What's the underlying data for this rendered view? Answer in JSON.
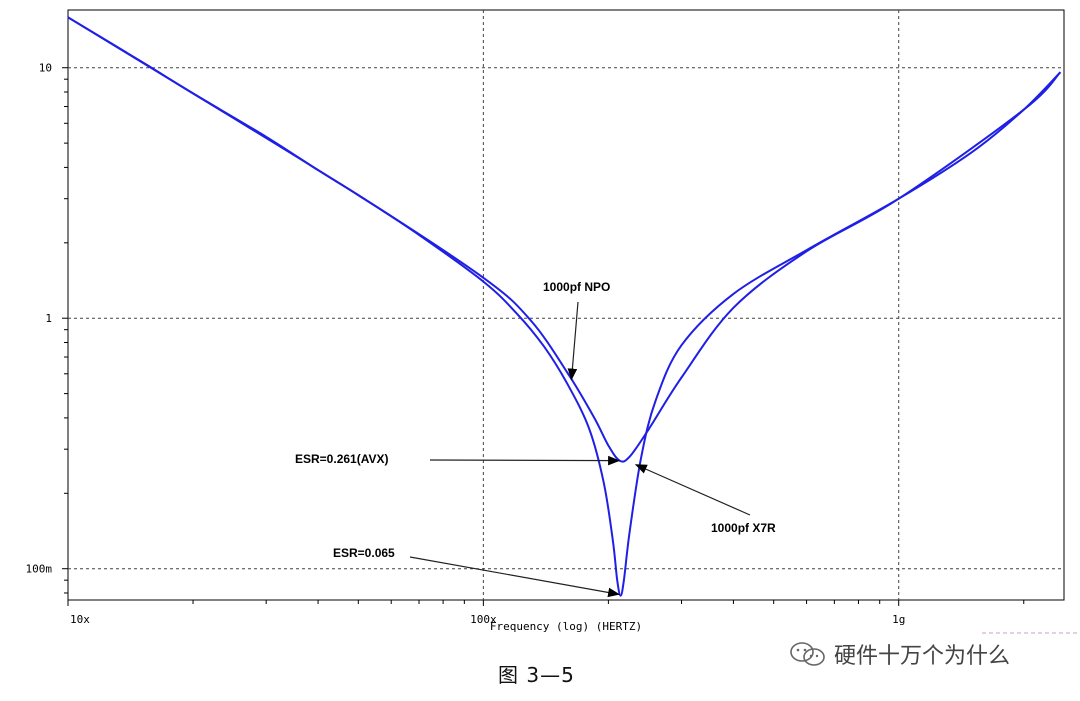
{
  "chart_data": {
    "type": "line",
    "title": "",
    "xlabel": "Frequency (log) (HERTZ)",
    "ylabel": "",
    "x_scale": "log",
    "y_scale": "log",
    "xlim": [
      10000000,
      2500000000
    ],
    "ylim": [
      0.075,
      17
    ],
    "x_ticks": [
      {
        "value": 10000000,
        "label": "10x"
      },
      {
        "value": 100000000,
        "label": "100x"
      },
      {
        "value": 1000000000,
        "label": "1g"
      }
    ],
    "y_ticks": [
      {
        "value": 10,
        "label": "10"
      },
      {
        "value": 1,
        "label": "1"
      },
      {
        "value": 0.1,
        "label": "100m"
      }
    ],
    "grid": true,
    "series": [
      {
        "color": "#1f1fe6",
        "points": [
          [
            10000000,
            15.9
          ],
          [
            15000000,
            10.6
          ],
          [
            20000000,
            7.9
          ],
          [
            30000000,
            5.3
          ],
          [
            40000000,
            3.9
          ],
          [
            50000000,
            3.1
          ],
          [
            70000000,
            2.15
          ],
          [
            100000000,
            1.4
          ],
          [
            120000000,
            1.05
          ],
          [
            140000000,
            0.77
          ],
          [
            160000000,
            0.54
          ],
          [
            180000000,
            0.36
          ],
          [
            195000000,
            0.22
          ],
          [
            205000000,
            0.13
          ],
          [
            210000000,
            0.09
          ],
          [
            214000000,
            0.078
          ],
          [
            218000000,
            0.09
          ],
          [
            225000000,
            0.14
          ],
          [
            240000000,
            0.28
          ],
          [
            260000000,
            0.47
          ],
          [
            300000000,
            0.78
          ],
          [
            400000000,
            1.25
          ],
          [
            600000000,
            1.87
          ],
          [
            1000000000,
            3.0
          ],
          [
            1500000000,
            4.6
          ],
          [
            2000000000,
            6.8
          ],
          [
            2450000000,
            9.6
          ]
        ]
      },
      {
        "color": "#1f1fe6",
        "points": [
          [
            10000000,
            15.9
          ],
          [
            20000000,
            7.9
          ],
          [
            50000000,
            3.1
          ],
          [
            100000000,
            1.45
          ],
          [
            130000000,
            0.98
          ],
          [
            160000000,
            0.6
          ],
          [
            185000000,
            0.4
          ],
          [
            200000000,
            0.31
          ],
          [
            213000000,
            0.27
          ],
          [
            225000000,
            0.28
          ],
          [
            250000000,
            0.36
          ],
          [
            300000000,
            0.58
          ],
          [
            400000000,
            1.1
          ],
          [
            600000000,
            1.85
          ],
          [
            1000000000,
            3.0
          ],
          [
            2000000000,
            6.8
          ],
          [
            2450000000,
            9.6
          ]
        ]
      }
    ],
    "annotations": [
      {
        "text": "1000pf NPO",
        "tip": [
          163000000,
          0.57
        ]
      },
      {
        "text": "ESR=0.261(AVX)",
        "tip": [
          212000000,
          0.27
        ]
      },
      {
        "text": "1000pf X7R",
        "tip": [
          233000000,
          0.26
        ]
      },
      {
        "text": "ESR=0.065",
        "tip": [
          212000000,
          0.079
        ]
      }
    ]
  },
  "caption": "图 3—5",
  "watermark_text": "硬件十万个为什么",
  "icons": {
    "watermark": "wechat-icon"
  }
}
